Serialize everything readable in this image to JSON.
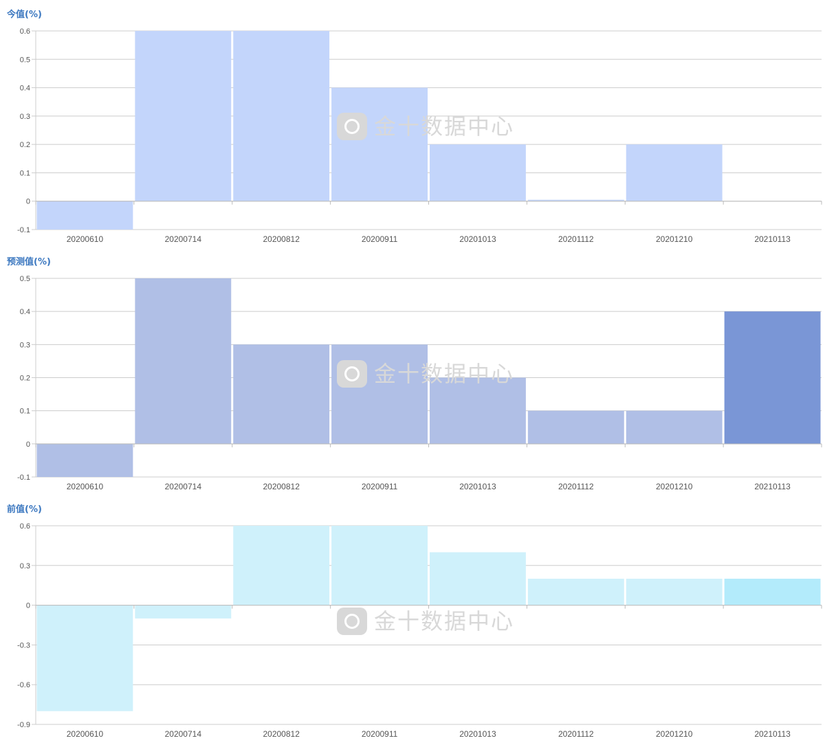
{
  "meta": {
    "title_color": "#3c78c0",
    "axis_text_color": "#555555",
    "grid_color": "#cccccc",
    "watermark_color": "#d8d8d8"
  },
  "watermark": {
    "text": "金十数据中心",
    "icon": "jin10-logo-icon"
  },
  "chart_data": [
    {
      "type": "bar",
      "title": "今值(%)",
      "categories": [
        "20200610",
        "20200714",
        "20200812",
        "20200911",
        "20201013",
        "20201112",
        "20201210",
        "20210113"
      ],
      "values": [
        -0.1,
        0.6,
        0.6,
        0.4,
        0.2,
        0.005,
        0.2,
        null
      ],
      "ylim": [
        -0.1,
        0.6
      ],
      "yticks": [
        -0.1,
        0,
        0.1,
        0.2,
        0.3,
        0.4,
        0.5,
        0.6
      ],
      "ytick_labels": [
        "-0.1",
        "0",
        "0.1",
        "0.2",
        "0.3",
        "0.4",
        "0.5",
        "0.6"
      ],
      "color": "#c3d5fb",
      "highlight_color": "#c3d5fb",
      "grid": true,
      "legend": "none"
    },
    {
      "type": "bar",
      "title": "预测值(%)",
      "categories": [
        "20200610",
        "20200714",
        "20200812",
        "20200911",
        "20201013",
        "20201112",
        "20201210",
        "20210113"
      ],
      "values": [
        -0.1,
        0.5,
        0.3,
        0.3,
        0.2,
        0.1,
        0.1,
        0.4
      ],
      "ylim": [
        -0.1,
        0.5
      ],
      "yticks": [
        -0.1,
        0,
        0.1,
        0.2,
        0.3,
        0.4,
        0.5
      ],
      "ytick_labels": [
        "-0.1",
        "0",
        "0.1",
        "0.2",
        "0.3",
        "0.4",
        "0.5"
      ],
      "color": "#b0bfe6",
      "highlight_color": "#7a96d6",
      "grid": true,
      "legend": "none"
    },
    {
      "type": "bar",
      "title": "前值(%)",
      "categories": [
        "20200610",
        "20200714",
        "20200812",
        "20200911",
        "20201013",
        "20201112",
        "20201210",
        "20210113"
      ],
      "values": [
        -0.8,
        -0.1,
        0.6,
        0.6,
        0.4,
        0.2,
        0.2,
        0.2
      ],
      "ylim": [
        -0.9,
        0.6
      ],
      "yticks": [
        -0.9,
        -0.6,
        -0.3,
        0,
        0.3,
        0.6
      ],
      "ytick_labels": [
        "-0.9",
        "-0.6",
        "-0.3",
        "0",
        "0.3",
        "0.6"
      ],
      "color": "#cff1fb",
      "highlight_color": "#b3ebfb",
      "grid": true,
      "legend": "none"
    }
  ]
}
